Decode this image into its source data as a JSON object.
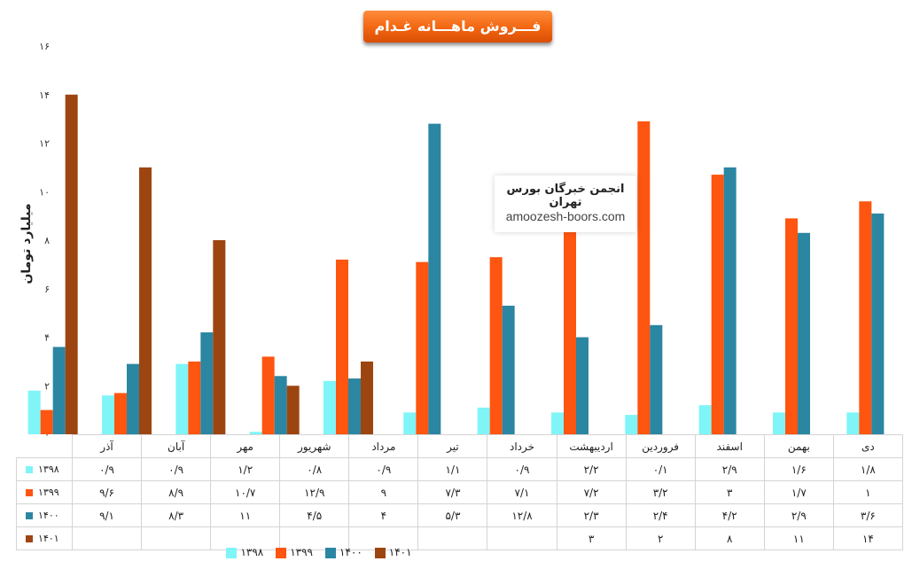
{
  "chart_data": {
    "type": "bar",
    "title": "فـــروش ماهـــانه غـدام",
    "ylabel": "میلیارد تومان",
    "ylim": [
      0,
      16
    ],
    "yticks": [
      "۰",
      "۲",
      "۴",
      "۶",
      "۸",
      "۱۰",
      "۱۲",
      "۱۴",
      "۱۶"
    ],
    "categories": [
      "دی",
      "بهمن",
      "اسفند",
      "فروردین",
      "اردیبهشت",
      "خرداد",
      "تیر",
      "مرداد",
      "شهریور",
      "مهر",
      "آبان",
      "آذر"
    ],
    "series": [
      {
        "name": "۱۳۹۸",
        "color": "#7ff5f8",
        "values": [
          1.8,
          1.6,
          2.9,
          0.1,
          2.2,
          0.9,
          1.1,
          0.9,
          0.8,
          1.2,
          0.9,
          0.9
        ],
        "labels": [
          "۱/۸",
          "۱/۶",
          "۲/۹",
          "۰/۱",
          "۲/۲",
          "۰/۹",
          "۱/۱",
          "۰/۹",
          "۰/۸",
          "۱/۲",
          "۰/۹",
          "۰/۹"
        ]
      },
      {
        "name": "۱۳۹۹",
        "color": "#fe5510",
        "values": [
          1,
          1.7,
          3,
          3.2,
          7.2,
          7.1,
          7.3,
          9,
          12.9,
          10.7,
          8.9,
          9.6
        ],
        "labels": [
          "۱",
          "۱/۷",
          "۳",
          "۳/۲",
          "۷/۲",
          "۷/۱",
          "۷/۳",
          "۹",
          "۱۲/۹",
          "۱۰/۷",
          "۸/۹",
          "۹/۶"
        ]
      },
      {
        "name": "۱۴۰۰",
        "color": "#2b86a2",
        "values": [
          3.6,
          2.9,
          4.2,
          2.4,
          2.3,
          12.8,
          5.3,
          4,
          4.5,
          11,
          8.3,
          9.1
        ],
        "labels": [
          "۳/۶",
          "۲/۹",
          "۴/۲",
          "۲/۴",
          "۲/۳",
          "۱۲/۸",
          "۵/۳",
          "۴",
          "۴/۵",
          "۱۱",
          "۸/۳",
          "۹/۱"
        ]
      },
      {
        "name": "۱۴۰۱",
        "color": "#9d4511",
        "values": [
          14,
          11,
          8,
          2,
          3,
          null,
          null,
          null,
          null,
          null,
          null,
          null
        ],
        "labels": [
          "۱۴",
          "۱۱",
          "۸",
          "۲",
          "۳",
          "",
          "",
          "",
          "",
          "",
          "",
          ""
        ]
      }
    ],
    "legend_position": "bottom",
    "grid": false
  },
  "watermark": {
    "line1": "انجمن خبرگان بورس تهران",
    "line2": "amoozesh-boors.com"
  }
}
